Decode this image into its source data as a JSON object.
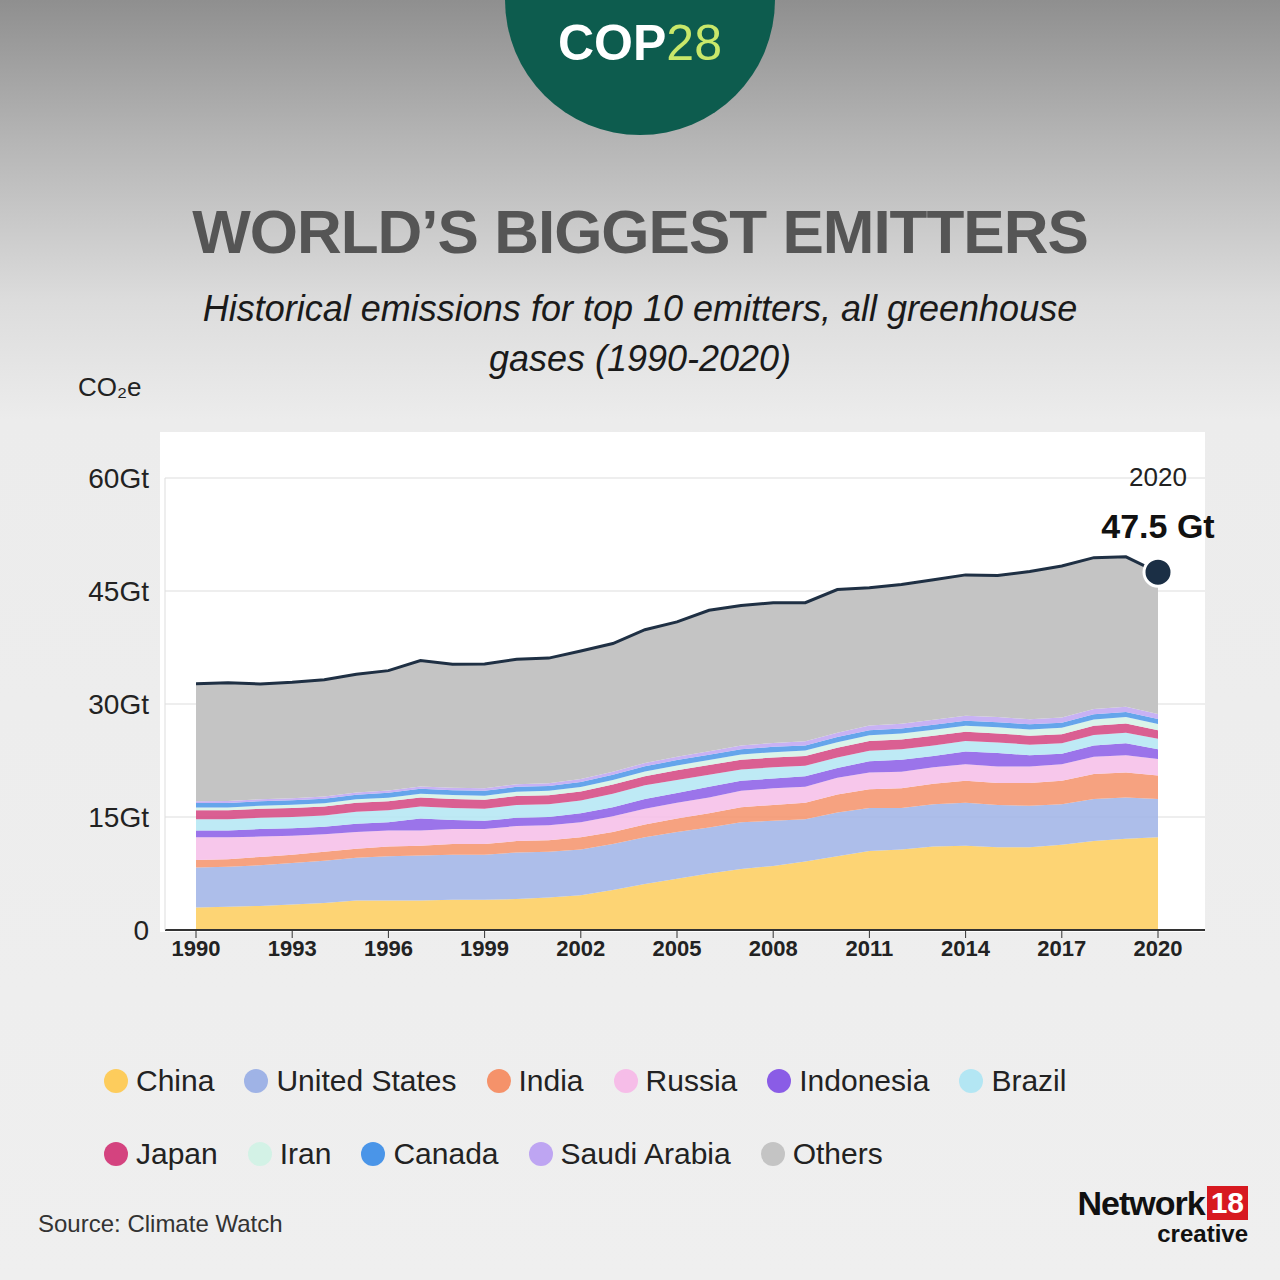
{
  "chart_data": {
    "type": "area",
    "stacked": true,
    "grid": true,
    "legend": "bottom",
    "badge": {
      "text": "COP",
      "number": "28"
    },
    "title": "WORLD’S BIGGEST EMITTERS",
    "subtitle": "Historical emissions for top 10 emitters, all greenhouse gases (1990-2020)",
    "ylabel": "CO₂e",
    "source": "Source: Climate Watch",
    "credit": {
      "name": "Network",
      "number": "18",
      "sub": "creative"
    },
    "x": [
      1990,
      1991,
      1992,
      1993,
      1994,
      1995,
      1996,
      1997,
      1998,
      1999,
      2000,
      2001,
      2002,
      2003,
      2004,
      2005,
      2006,
      2007,
      2008,
      2009,
      2010,
      2011,
      2012,
      2013,
      2014,
      2015,
      2016,
      2017,
      2018,
      2019,
      2020
    ],
    "xlim": [
      1990,
      2020
    ],
    "xticks": [
      1990,
      1993,
      1996,
      1999,
      2002,
      2005,
      2008,
      2011,
      2014,
      2017,
      2020
    ],
    "ylim": [
      0,
      60
    ],
    "yticks": [
      0,
      {
        "value": 15,
        "label": "15Gt"
      },
      {
        "value": 30,
        "label": "30Gt"
      },
      {
        "value": 45,
        "label": "45Gt"
      },
      {
        "value": 60,
        "label": "60Gt"
      }
    ],
    "annotations": [
      {
        "x": 2020,
        "y": 47.5,
        "label": "2020",
        "text": "47.5 Gt"
      }
    ],
    "series": [
      {
        "name": "China",
        "color": "#fdcc5c",
        "values": [
          3.0,
          3.1,
          3.2,
          3.4,
          3.6,
          3.9,
          3.9,
          3.9,
          4.0,
          4.0,
          4.1,
          4.3,
          4.6,
          5.3,
          6.1,
          6.8,
          7.5,
          8.1,
          8.5,
          9.1,
          9.8,
          10.5,
          10.7,
          11.1,
          11.2,
          11.0,
          11.0,
          11.3,
          11.8,
          12.1,
          12.3
        ]
      },
      {
        "name": "United States",
        "color": "#9fb3e6",
        "values": [
          5.3,
          5.3,
          5.4,
          5.5,
          5.6,
          5.7,
          5.9,
          6.0,
          6.0,
          6.0,
          6.2,
          6.1,
          6.1,
          6.1,
          6.2,
          6.2,
          6.1,
          6.2,
          6.0,
          5.6,
          5.8,
          5.7,
          5.5,
          5.6,
          5.7,
          5.6,
          5.5,
          5.4,
          5.6,
          5.5,
          5.1
        ]
      },
      {
        "name": "India",
        "color": "#f5926a",
        "values": [
          1.0,
          1.0,
          1.1,
          1.1,
          1.2,
          1.2,
          1.3,
          1.3,
          1.4,
          1.4,
          1.5,
          1.5,
          1.6,
          1.6,
          1.7,
          1.8,
          1.9,
          2.0,
          2.1,
          2.2,
          2.4,
          2.5,
          2.6,
          2.7,
          2.9,
          2.9,
          3.0,
          3.1,
          3.3,
          3.3,
          3.1
        ]
      },
      {
        "name": "Russia",
        "color": "#f6bde8",
        "values": [
          3.0,
          2.9,
          2.7,
          2.5,
          2.3,
          2.2,
          2.1,
          2.0,
          2.0,
          2.0,
          2.0,
          2.0,
          2.0,
          2.1,
          2.1,
          2.1,
          2.1,
          2.2,
          2.2,
          2.1,
          2.2,
          2.2,
          2.2,
          2.2,
          2.2,
          2.2,
          2.2,
          2.2,
          2.3,
          2.3,
          2.2
        ]
      },
      {
        "name": "Indonesia",
        "color": "#8a5ce6",
        "values": [
          0.9,
          0.9,
          1.0,
          1.0,
          1.0,
          1.1,
          1.1,
          1.6,
          1.2,
          1.1,
          1.1,
          1.1,
          1.2,
          1.2,
          1.3,
          1.3,
          1.4,
          1.3,
          1.3,
          1.4,
          1.3,
          1.5,
          1.6,
          1.5,
          1.7,
          1.8,
          1.5,
          1.4,
          1.5,
          1.6,
          1.3
        ]
      },
      {
        "name": "Brazil",
        "color": "#b3e6f3",
        "values": [
          1.5,
          1.5,
          1.5,
          1.5,
          1.5,
          1.6,
          1.6,
          1.6,
          1.6,
          1.6,
          1.7,
          1.7,
          1.7,
          1.8,
          1.8,
          1.7,
          1.6,
          1.5,
          1.5,
          1.4,
          1.4,
          1.4,
          1.4,
          1.4,
          1.4,
          1.4,
          1.4,
          1.4,
          1.4,
          1.4,
          1.4
        ]
      },
      {
        "name": "Japan",
        "color": "#d4437f",
        "values": [
          1.2,
          1.2,
          1.2,
          1.2,
          1.2,
          1.2,
          1.2,
          1.2,
          1.2,
          1.2,
          1.2,
          1.2,
          1.2,
          1.2,
          1.2,
          1.3,
          1.3,
          1.3,
          1.3,
          1.3,
          1.3,
          1.3,
          1.3,
          1.3,
          1.2,
          1.2,
          1.2,
          1.2,
          1.2,
          1.2,
          1.1
        ]
      },
      {
        "name": "Iran",
        "color": "#d3f2e6",
        "values": [
          0.35,
          0.37,
          0.39,
          0.41,
          0.43,
          0.45,
          0.47,
          0.49,
          0.51,
          0.53,
          0.55,
          0.57,
          0.59,
          0.61,
          0.63,
          0.65,
          0.67,
          0.69,
          0.71,
          0.72,
          0.73,
          0.75,
          0.77,
          0.78,
          0.8,
          0.8,
          0.82,
          0.84,
          0.85,
          0.86,
          0.85
        ]
      },
      {
        "name": "Canada",
        "color": "#4a95e8",
        "values": [
          0.6,
          0.6,
          0.6,
          0.6,
          0.6,
          0.6,
          0.65,
          0.65,
          0.65,
          0.65,
          0.65,
          0.65,
          0.65,
          0.7,
          0.7,
          0.7,
          0.7,
          0.7,
          0.7,
          0.68,
          0.68,
          0.68,
          0.68,
          0.68,
          0.68,
          0.68,
          0.68,
          0.68,
          0.68,
          0.68,
          0.65
        ]
      },
      {
        "name": "Saudi Arabia",
        "color": "#bea5f2",
        "values": [
          0.25,
          0.26,
          0.27,
          0.28,
          0.29,
          0.3,
          0.31,
          0.32,
          0.33,
          0.34,
          0.35,
          0.37,
          0.39,
          0.41,
          0.43,
          0.45,
          0.47,
          0.49,
          0.52,
          0.55,
          0.58,
          0.6,
          0.62,
          0.64,
          0.66,
          0.68,
          0.69,
          0.7,
          0.7,
          0.7,
          0.68
        ]
      },
      {
        "name": "Others",
        "color": "#c4c4c4",
        "values": [
          15.6,
          15.7,
          15.3,
          15.4,
          15.5,
          15.7,
          15.9,
          16.7,
          16.4,
          16.5,
          16.6,
          16.6,
          17.0,
          17.0,
          17.7,
          17.9,
          18.7,
          18.6,
          18.6,
          18.4,
          19.0,
          18.3,
          18.5,
          18.6,
          18.7,
          18.8,
          19.6,
          20.1,
          20.1,
          19.9,
          18.8
        ]
      }
    ]
  }
}
